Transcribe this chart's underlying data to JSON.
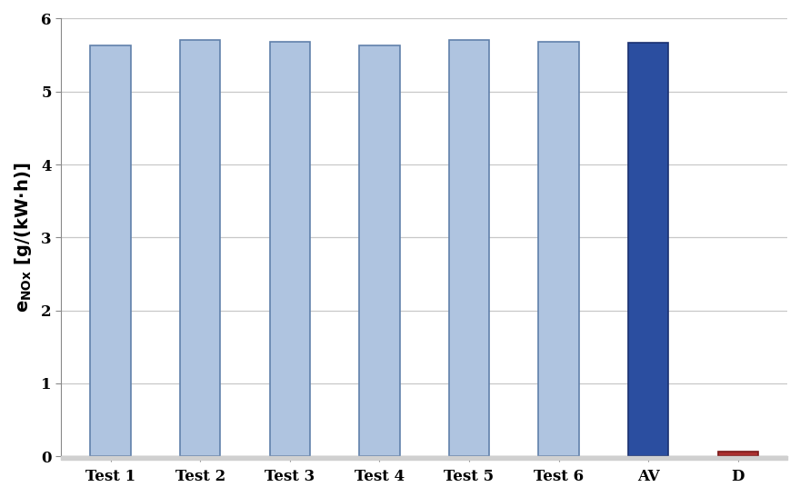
{
  "categories": [
    "Test 1",
    "Test 2",
    "Test 3",
    "Test 4",
    "Test 5",
    "Test 6",
    "AV",
    "D"
  ],
  "values": [
    5.63,
    5.7,
    5.68,
    5.63,
    5.7,
    5.68,
    5.67,
    0.07
  ],
  "bar_colors": [
    "#afc4e0",
    "#afc4e0",
    "#afc4e0",
    "#afc4e0",
    "#afc4e0",
    "#afc4e0",
    "#2b4ea0",
    "#aa3030"
  ],
  "bar_edge_colors": [
    "#6080aa",
    "#6080aa",
    "#6080aa",
    "#6080aa",
    "#6080aa",
    "#6080aa",
    "#1a3070",
    "#7a1818"
  ],
  "ylabel_main": "e",
  "ylabel_sub": "NOx",
  "ylabel_unit": " [g/(kW·h)]",
  "ylim": [
    0,
    6
  ],
  "yticks": [
    0,
    1,
    2,
    3,
    4,
    5,
    6
  ],
  "plot_bg_color": "#ffffff",
  "fig_bg_color": "#ffffff",
  "grid_color": "#c8c8c8",
  "bar_width": 0.45,
  "axis_fontsize": 14,
  "tick_fontsize": 12,
  "label_bottom_area": "#d8d8d8"
}
